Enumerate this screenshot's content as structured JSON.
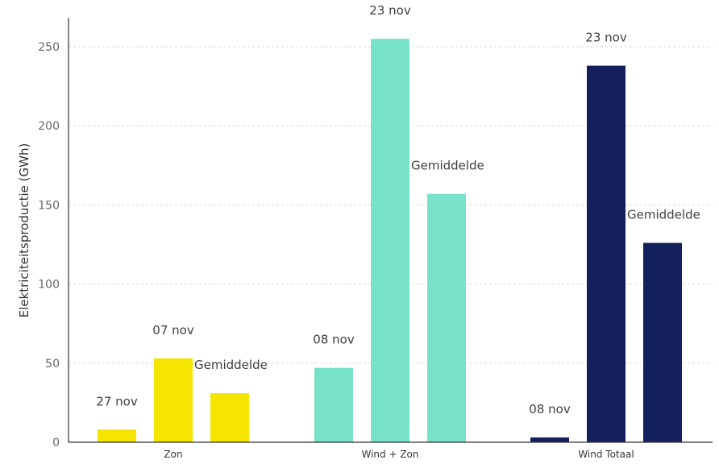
{
  "chart_data": {
    "type": "bar",
    "ylabel": "Elektriciteitsproductie (GWh)",
    "ylim": [
      0,
      270
    ],
    "yticks": [
      0,
      50,
      100,
      150,
      200,
      250
    ],
    "grid": true,
    "groups": [
      {
        "category": "Zon",
        "color": "#f5e500",
        "bars": [
          {
            "label": "27 nov",
            "value": 8
          },
          {
            "label": "07 nov",
            "value": 53
          },
          {
            "label": "Gemiddelde",
            "value": 31
          }
        ]
      },
      {
        "category": "Wind + Zon",
        "color": "#78e2c8",
        "bars": [
          {
            "label": "08 nov",
            "value": 47
          },
          {
            "label": "23 nov",
            "value": 255
          },
          {
            "label": "Gemiddelde",
            "value": 157
          }
        ]
      },
      {
        "category": "Wind Totaal",
        "color": "#14205e",
        "bars": [
          {
            "label": "08 nov",
            "value": 3
          },
          {
            "label": "23 nov",
            "value": 238
          },
          {
            "label": "Gemiddelde",
            "value": 126
          }
        ]
      }
    ]
  }
}
